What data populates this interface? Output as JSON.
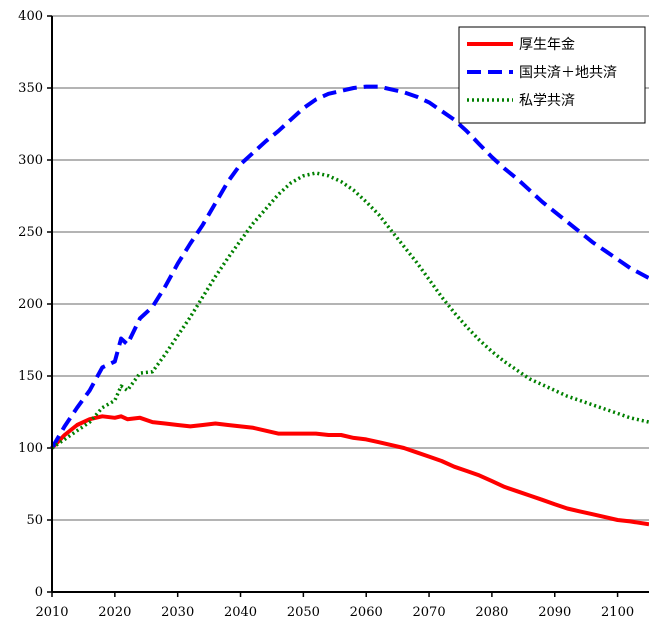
{
  "chart_data": {
    "type": "line",
    "title": "",
    "xlabel": "",
    "ylabel": "",
    "xlim": [
      2010,
      2105
    ],
    "ylim": [
      0,
      400
    ],
    "x_ticks": [
      "2010",
      "2020",
      "2030",
      "2040",
      "2050",
      "2060",
      "2070",
      "2080",
      "2090",
      "2100"
    ],
    "y_ticks": [
      "0",
      "50",
      "100",
      "150",
      "200",
      "250",
      "300",
      "350",
      "400"
    ],
    "grid": "horizontal",
    "legend_position": "top-right",
    "series": [
      {
        "name": "厚生年金",
        "color": "#ff0000",
        "style": "solid",
        "points": [
          [
            2010,
            100
          ],
          [
            2012,
            109
          ],
          [
            2014,
            116
          ],
          [
            2016,
            120
          ],
          [
            2018,
            122
          ],
          [
            2020,
            121
          ],
          [
            2021,
            122
          ],
          [
            2022,
            120
          ],
          [
            2024,
            121
          ],
          [
            2026,
            118
          ],
          [
            2028,
            117
          ],
          [
            2030,
            116
          ],
          [
            2032,
            115
          ],
          [
            2034,
            116
          ],
          [
            2036,
            117
          ],
          [
            2038,
            116
          ],
          [
            2040,
            115
          ],
          [
            2042,
            114
          ],
          [
            2044,
            112
          ],
          [
            2046,
            110
          ],
          [
            2050,
            110
          ],
          [
            2052,
            110
          ],
          [
            2054,
            109
          ],
          [
            2056,
            109
          ],
          [
            2058,
            107
          ],
          [
            2060,
            106
          ],
          [
            2062,
            104
          ],
          [
            2064,
            102
          ],
          [
            2066,
            100
          ],
          [
            2068,
            97
          ],
          [
            2070,
            94
          ],
          [
            2072,
            91
          ],
          [
            2074,
            87
          ],
          [
            2076,
            84
          ],
          [
            2078,
            81
          ],
          [
            2080,
            77
          ],
          [
            2082,
            73
          ],
          [
            2084,
            70
          ],
          [
            2086,
            67
          ],
          [
            2088,
            64
          ],
          [
            2090,
            61
          ],
          [
            2092,
            58
          ],
          [
            2094,
            56
          ],
          [
            2096,
            54
          ],
          [
            2098,
            52
          ],
          [
            2100,
            50
          ],
          [
            2102,
            49
          ],
          [
            2105,
            47
          ]
        ]
      },
      {
        "name": "国共済＋地共済",
        "color": "#0000ff",
        "style": "dashed",
        "points": [
          [
            2010,
            100
          ],
          [
            2012,
            115
          ],
          [
            2014,
            128
          ],
          [
            2016,
            140
          ],
          [
            2018,
            156
          ],
          [
            2020,
            160
          ],
          [
            2021,
            176
          ],
          [
            2022,
            172
          ],
          [
            2024,
            190
          ],
          [
            2026,
            198
          ],
          [
            2028,
            212
          ],
          [
            2030,
            228
          ],
          [
            2032,
            242
          ],
          [
            2034,
            255
          ],
          [
            2036,
            270
          ],
          [
            2038,
            285
          ],
          [
            2040,
            297
          ],
          [
            2042,
            305
          ],
          [
            2044,
            313
          ],
          [
            2046,
            320
          ],
          [
            2048,
            328
          ],
          [
            2050,
            336
          ],
          [
            2052,
            342
          ],
          [
            2054,
            346
          ],
          [
            2056,
            348
          ],
          [
            2058,
            350
          ],
          [
            2060,
            351
          ],
          [
            2062,
            351
          ],
          [
            2064,
            349
          ],
          [
            2066,
            347
          ],
          [
            2068,
            344
          ],
          [
            2070,
            340
          ],
          [
            2072,
            334
          ],
          [
            2074,
            328
          ],
          [
            2076,
            320
          ],
          [
            2078,
            311
          ],
          [
            2080,
            302
          ],
          [
            2082,
            294
          ],
          [
            2084,
            287
          ],
          [
            2086,
            279
          ],
          [
            2088,
            271
          ],
          [
            2090,
            264
          ],
          [
            2092,
            257
          ],
          [
            2094,
            250
          ],
          [
            2096,
            243
          ],
          [
            2098,
            237
          ],
          [
            2100,
            231
          ],
          [
            2102,
            225
          ],
          [
            2105,
            218
          ]
        ]
      },
      {
        "name": "私学共済",
        "color": "#008000",
        "style": "dotted",
        "points": [
          [
            2010,
            100
          ],
          [
            2012,
            106
          ],
          [
            2014,
            112
          ],
          [
            2016,
            118
          ],
          [
            2018,
            128
          ],
          [
            2020,
            133
          ],
          [
            2021,
            143
          ],
          [
            2022,
            140
          ],
          [
            2024,
            152
          ],
          [
            2026,
            153
          ],
          [
            2028,
            165
          ],
          [
            2030,
            178
          ],
          [
            2032,
            191
          ],
          [
            2034,
            205
          ],
          [
            2036,
            219
          ],
          [
            2038,
            232
          ],
          [
            2040,
            244
          ],
          [
            2042,
            256
          ],
          [
            2044,
            266
          ],
          [
            2046,
            276
          ],
          [
            2048,
            284
          ],
          [
            2050,
            289
          ],
          [
            2052,
            291
          ],
          [
            2054,
            289
          ],
          [
            2056,
            285
          ],
          [
            2058,
            279
          ],
          [
            2060,
            271
          ],
          [
            2062,
            262
          ],
          [
            2064,
            251
          ],
          [
            2066,
            240
          ],
          [
            2068,
            229
          ],
          [
            2070,
            217
          ],
          [
            2072,
            205
          ],
          [
            2074,
            194
          ],
          [
            2076,
            184
          ],
          [
            2078,
            175
          ],
          [
            2080,
            167
          ],
          [
            2082,
            160
          ],
          [
            2084,
            154
          ],
          [
            2086,
            148
          ],
          [
            2088,
            144
          ],
          [
            2090,
            140
          ],
          [
            2092,
            136
          ],
          [
            2094,
            133
          ],
          [
            2096,
            130
          ],
          [
            2098,
            127
          ],
          [
            2100,
            124
          ],
          [
            2102,
            121
          ],
          [
            2105,
            118
          ]
        ]
      }
    ]
  }
}
